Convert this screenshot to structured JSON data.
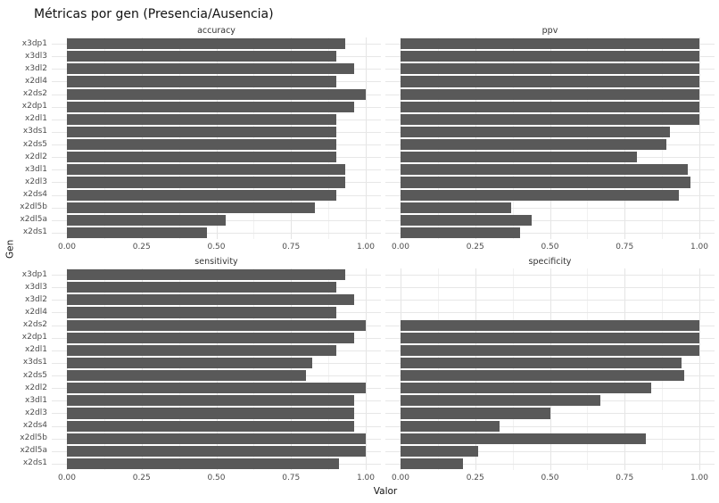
{
  "title": "Métricas por gen (Presencia/Ausencia)",
  "xlabel": "Valor",
  "ylabel": "Gen",
  "colors": {
    "bar": "#595959",
    "grid_major": "#e4e4e4",
    "grid_minor": "#f1f1f1",
    "axis_text": "#4d4d4d",
    "strip_text": "#333333"
  },
  "chart_data": {
    "type": "bar",
    "orientation": "horizontal",
    "title": "Métricas por gen (Presencia/Ausencia)",
    "xlabel": "Valor",
    "ylabel": "Gen",
    "xlim": [
      0,
      1
    ],
    "xtick_labels": [
      "0.00",
      "0.25",
      "0.50",
      "0.75",
      "1.00"
    ],
    "xtick_values": [
      0,
      0.25,
      0.5,
      0.75,
      1
    ],
    "grid": true,
    "legend": false,
    "categories": [
      "x3dp1",
      "x3dl3",
      "x3dl2",
      "x2dl4",
      "x2ds2",
      "x2dp1",
      "x2dl1",
      "x3ds1",
      "x2ds5",
      "x2dl2",
      "x3dl1",
      "x2dl3",
      "x2ds4",
      "x2dl5b",
      "x2dl5a",
      "x2ds1"
    ],
    "series": [
      {
        "name": "accuracy",
        "values": [
          0.93,
          0.9,
          0.96,
          0.9,
          1.0,
          0.96,
          0.9,
          0.9,
          0.9,
          0.9,
          0.93,
          0.93,
          0.9,
          0.83,
          0.53,
          0.47
        ]
      },
      {
        "name": "ppv",
        "values": [
          1.0,
          1.0,
          1.0,
          1.0,
          1.0,
          1.0,
          1.0,
          0.9,
          0.89,
          0.79,
          0.96,
          0.97,
          0.93,
          0.37,
          0.44,
          0.4
        ]
      },
      {
        "name": "sensitivity",
        "values": [
          0.93,
          0.9,
          0.96,
          0.9,
          1.0,
          0.96,
          0.9,
          0.82,
          0.8,
          1.0,
          0.96,
          0.96,
          0.96,
          1.0,
          1.0,
          0.91
        ]
      },
      {
        "name": "specificity",
        "values": [
          null,
          null,
          null,
          null,
          1.0,
          1.0,
          1.0,
          0.94,
          0.95,
          0.84,
          0.67,
          0.5,
          0.33,
          0.82,
          0.26,
          0.21
        ]
      }
    ]
  }
}
